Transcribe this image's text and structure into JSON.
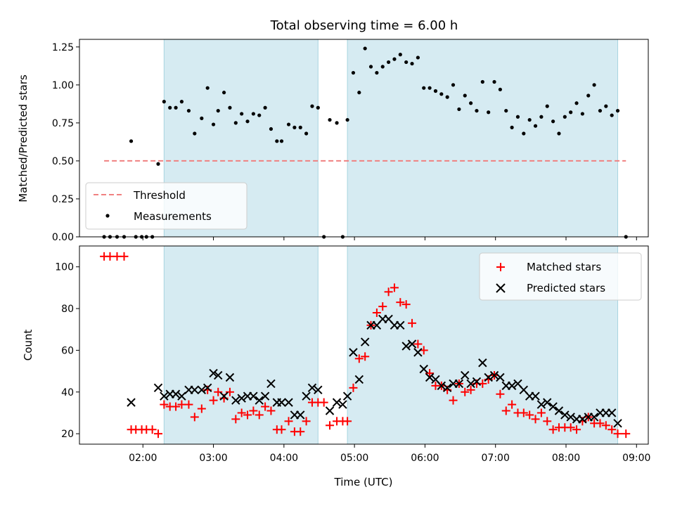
{
  "title": "Total observing time = 6.00 h",
  "chart_data": [
    {
      "type": "scatter",
      "ylabel": "Matched/Predicted stars",
      "xlabel": "",
      "xlim": [
        "01:06",
        "09:10"
      ],
      "ylim": [
        0,
        1.3
      ],
      "yticks": [
        0.0,
        0.25,
        0.5,
        0.75,
        1.0,
        1.25
      ],
      "ytick_labels": [
        "0.00",
        "0.25",
        "0.50",
        "0.75",
        "1.00",
        "1.25"
      ],
      "xticks": [
        "02:00",
        "03:00",
        "04:00",
        "05:00",
        "06:00",
        "07:00",
        "08:00",
        "09:00"
      ],
      "xtick_labels_visible": false,
      "shaded_intervals": [
        [
          "02:18",
          "04:29"
        ],
        [
          "04:54",
          "08:44"
        ]
      ],
      "threshold": {
        "value": 0.5,
        "x_range": [
          "01:27",
          "08:51"
        ],
        "color": "#f08080"
      },
      "legend": {
        "position": "lower-left",
        "entries": [
          "Threshold",
          "Measurements"
        ]
      },
      "series": [
        {
          "name": "Measurements",
          "color": "#000000",
          "x": [
            "01:27",
            "01:32",
            "01:38",
            "01:44",
            "01:50",
            "01:54",
            "01:59",
            "02:03",
            "02:08",
            "02:13",
            "02:18",
            "02:23",
            "02:28",
            "02:33",
            "02:39",
            "02:44",
            "02:50",
            "02:55",
            "03:00",
            "03:04",
            "03:09",
            "03:14",
            "03:19",
            "03:24",
            "03:29",
            "03:34",
            "03:39",
            "03:44",
            "03:49",
            "03:54",
            "03:58",
            "04:04",
            "04:09",
            "04:14",
            "04:19",
            "04:24",
            "04:29",
            "04:34",
            "04:39",
            "04:45",
            "04:50",
            "04:54",
            "04:59",
            "05:04",
            "05:09",
            "05:14",
            "05:19",
            "05:24",
            "05:29",
            "05:34",
            "05:39",
            "05:44",
            "05:49",
            "05:54",
            "05:59",
            "06:04",
            "06:09",
            "06:14",
            "06:19",
            "06:24",
            "06:29",
            "06:34",
            "06:39",
            "06:44",
            "06:49",
            "06:54",
            "06:59",
            "07:04",
            "07:09",
            "07:14",
            "07:19",
            "07:24",
            "07:29",
            "07:34",
            "07:39",
            "07:44",
            "07:49",
            "07:54",
            "07:59",
            "08:04",
            "08:09",
            "08:14",
            "08:19",
            "08:24",
            "08:29",
            "08:34",
            "08:39",
            "08:44",
            "08:51"
          ],
          "y": [
            0.0,
            0.0,
            0.0,
            0.0,
            0.63,
            0.0,
            0.0,
            0.0,
            0.0,
            0.48,
            0.89,
            0.85,
            0.85,
            0.89,
            0.83,
            0.68,
            0.78,
            0.98,
            0.74,
            0.83,
            0.95,
            0.85,
            0.75,
            0.81,
            0.76,
            0.81,
            0.8,
            0.85,
            0.71,
            0.63,
            0.63,
            0.74,
            0.72,
            0.72,
            0.68,
            0.86,
            0.85,
            0.0,
            0.77,
            0.75,
            0.0,
            0.77,
            1.08,
            0.95,
            1.24,
            1.12,
            1.08,
            1.12,
            1.15,
            1.17,
            1.2,
            1.15,
            1.14,
            1.18,
            0.98,
            0.98,
            0.96,
            0.94,
            0.92,
            1.0,
            0.84,
            0.93,
            0.88,
            0.83,
            1.02,
            0.82,
            1.02,
            0.97,
            0.83,
            0.72,
            0.79,
            0.68,
            0.77,
            0.73,
            0.79,
            0.86,
            0.76,
            0.68,
            0.79,
            0.82,
            0.88,
            0.81,
            0.93,
            1.0,
            0.83,
            0.86,
            0.8,
            0.83,
            0.0
          ]
        }
      ]
    },
    {
      "type": "scatter",
      "ylabel": "Count",
      "xlabel": "Time (UTC)",
      "xlim": [
        "01:06",
        "09:10"
      ],
      "ylim": [
        15,
        110
      ],
      "yticks": [
        20,
        40,
        60,
        80,
        100
      ],
      "xticks": [
        "02:00",
        "03:00",
        "04:00",
        "05:00",
        "06:00",
        "07:00",
        "08:00",
        "09:00"
      ],
      "shaded_intervals": [
        [
          "02:18",
          "04:29"
        ],
        [
          "04:54",
          "08:44"
        ]
      ],
      "legend": {
        "position": "upper-right",
        "entries": [
          "Matched stars",
          "Predicted stars"
        ]
      },
      "series": [
        {
          "name": "Matched stars",
          "marker": "+",
          "color": "#ff0000",
          "x": [
            "01:27",
            "01:32",
            "01:38",
            "01:44",
            "01:50",
            "01:54",
            "01:59",
            "02:03",
            "02:08",
            "02:13",
            "02:18",
            "02:23",
            "02:28",
            "02:33",
            "02:39",
            "02:44",
            "02:50",
            "02:55",
            "03:00",
            "03:04",
            "03:09",
            "03:14",
            "03:19",
            "03:24",
            "03:29",
            "03:34",
            "03:39",
            "03:44",
            "03:49",
            "03:54",
            "03:58",
            "04:04",
            "04:09",
            "04:14",
            "04:19",
            "04:24",
            "04:29",
            "04:34",
            "04:39",
            "04:45",
            "04:50",
            "04:54",
            "04:59",
            "05:04",
            "05:09",
            "05:14",
            "05:19",
            "05:24",
            "05:29",
            "05:34",
            "05:39",
            "05:44",
            "05:49",
            "05:54",
            "05:59",
            "06:04",
            "06:09",
            "06:14",
            "06:19",
            "06:24",
            "06:29",
            "06:34",
            "06:39",
            "06:44",
            "06:49",
            "06:54",
            "06:59",
            "07:04",
            "07:09",
            "07:14",
            "07:19",
            "07:24",
            "07:29",
            "07:34",
            "07:39",
            "07:44",
            "07:49",
            "07:54",
            "07:59",
            "08:04",
            "08:09",
            "08:14",
            "08:19",
            "08:24",
            "08:29",
            "08:34",
            "08:39",
            "08:44",
            "08:51"
          ],
          "y": [
            105,
            105,
            105,
            105,
            22,
            22,
            22,
            22,
            22,
            20,
            34,
            33,
            33,
            34,
            34,
            28,
            32,
            41,
            36,
            40,
            37,
            40,
            27,
            30,
            29,
            31,
            29,
            33,
            31,
            22,
            22,
            26,
            21,
            21,
            26,
            35,
            35,
            35,
            24,
            26,
            26,
            26,
            42,
            56,
            57,
            72,
            78,
            81,
            88,
            90,
            83,
            82,
            73,
            63,
            60,
            49,
            43,
            43,
            41,
            36,
            44,
            40,
            41,
            44,
            44,
            46,
            48,
            39,
            31,
            34,
            30,
            30,
            29,
            27,
            30,
            26,
            22,
            23,
            23,
            23,
            22,
            26,
            28,
            25,
            25,
            24,
            22,
            20,
            20
          ]
        },
        {
          "name": "Predicted stars",
          "marker": "x",
          "color": "#000000",
          "x": [
            "01:50",
            "02:13",
            "02:18",
            "02:23",
            "02:28",
            "02:33",
            "02:39",
            "02:44",
            "02:50",
            "02:55",
            "03:00",
            "03:04",
            "03:09",
            "03:14",
            "03:19",
            "03:24",
            "03:29",
            "03:34",
            "03:39",
            "03:44",
            "03:49",
            "03:54",
            "03:58",
            "04:04",
            "04:09",
            "04:14",
            "04:19",
            "04:24",
            "04:29",
            "04:39",
            "04:45",
            "04:50",
            "04:54",
            "04:59",
            "05:04",
            "05:09",
            "05:14",
            "05:19",
            "05:24",
            "05:29",
            "05:34",
            "05:39",
            "05:44",
            "05:49",
            "05:54",
            "05:59",
            "06:04",
            "06:09",
            "06:14",
            "06:19",
            "06:24",
            "06:29",
            "06:34",
            "06:39",
            "06:44",
            "06:49",
            "06:54",
            "06:59",
            "07:04",
            "07:09",
            "07:14",
            "07:19",
            "07:24",
            "07:29",
            "07:34",
            "07:39",
            "07:44",
            "07:49",
            "07:54",
            "07:59",
            "08:04",
            "08:09",
            "08:14",
            "08:19",
            "08:24",
            "08:29",
            "08:34",
            "08:39",
            "08:44"
          ],
          "y": [
            35,
            42,
            38,
            39,
            39,
            38,
            41,
            41,
            41,
            42,
            49,
            48,
            38,
            47,
            36,
            37,
            38,
            38,
            36,
            38,
            44,
            35,
            35,
            35,
            29,
            29,
            38,
            42,
            41,
            31,
            35,
            34,
            38,
            59,
            46,
            64,
            72,
            72,
            75,
            75,
            72,
            72,
            62,
            63,
            59,
            51,
            47,
            46,
            43,
            42,
            44,
            44,
            48,
            44,
            45,
            54,
            47,
            48,
            47,
            43,
            43,
            44,
            41,
            38,
            38,
            34,
            35,
            33,
            31,
            29,
            28,
            27,
            27,
            28,
            28,
            30,
            30,
            30,
            25
          ]
        }
      ]
    }
  ]
}
